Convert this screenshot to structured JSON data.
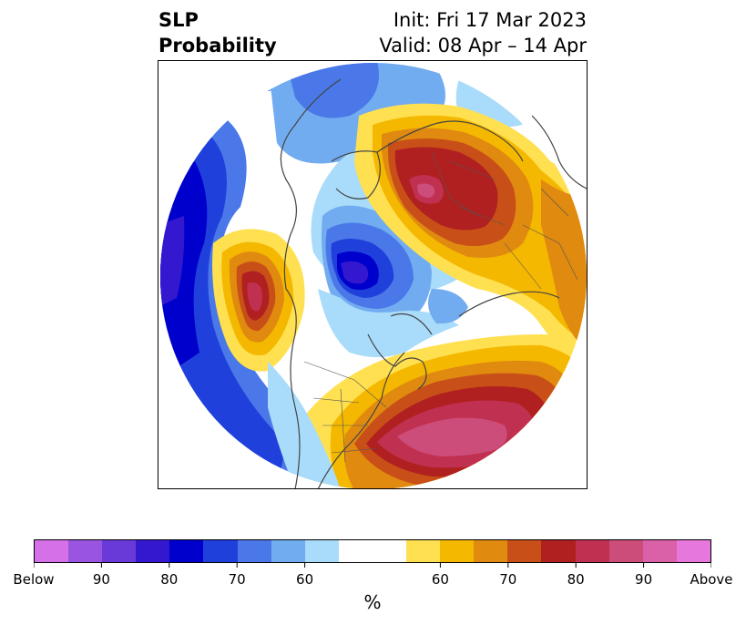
{
  "title": {
    "variable": "SLP",
    "subtitle": "Probability",
    "init": "Init: Fri 17 Mar 2023",
    "valid": "Valid: 08 Apr – 14 Apr"
  },
  "colorbar": {
    "unit_label": "%",
    "tick_labels": [
      "Below",
      "90",
      "80",
      "70",
      "60",
      "60",
      "70",
      "80",
      "90",
      "Above"
    ],
    "colors": [
      "#d670e8",
      "#9a55e0",
      "#6a3ad8",
      "#3418d0",
      "#0000cc",
      "#2040dc",
      "#4a78e8",
      "#72acf0",
      "#a8dcfa",
      "#ffffff",
      "#ffffff",
      "#ffe050",
      "#f5b800",
      "#e08a10",
      "#c85018",
      "#b02020",
      "#c03050",
      "#cc4c7a",
      "#da60a8",
      "#e677dd"
    ]
  },
  "map": {
    "projection": "north-polar-stereographic",
    "below_palette": [
      "#a8dcfa",
      "#72acf0",
      "#4a78e8",
      "#2040dc",
      "#0000cc",
      "#3418d0"
    ],
    "above_palette": [
      "#ffe050",
      "#f5b800",
      "#e08a10",
      "#c85018",
      "#b02020",
      "#c03050",
      "#cc4c7a"
    ]
  }
}
